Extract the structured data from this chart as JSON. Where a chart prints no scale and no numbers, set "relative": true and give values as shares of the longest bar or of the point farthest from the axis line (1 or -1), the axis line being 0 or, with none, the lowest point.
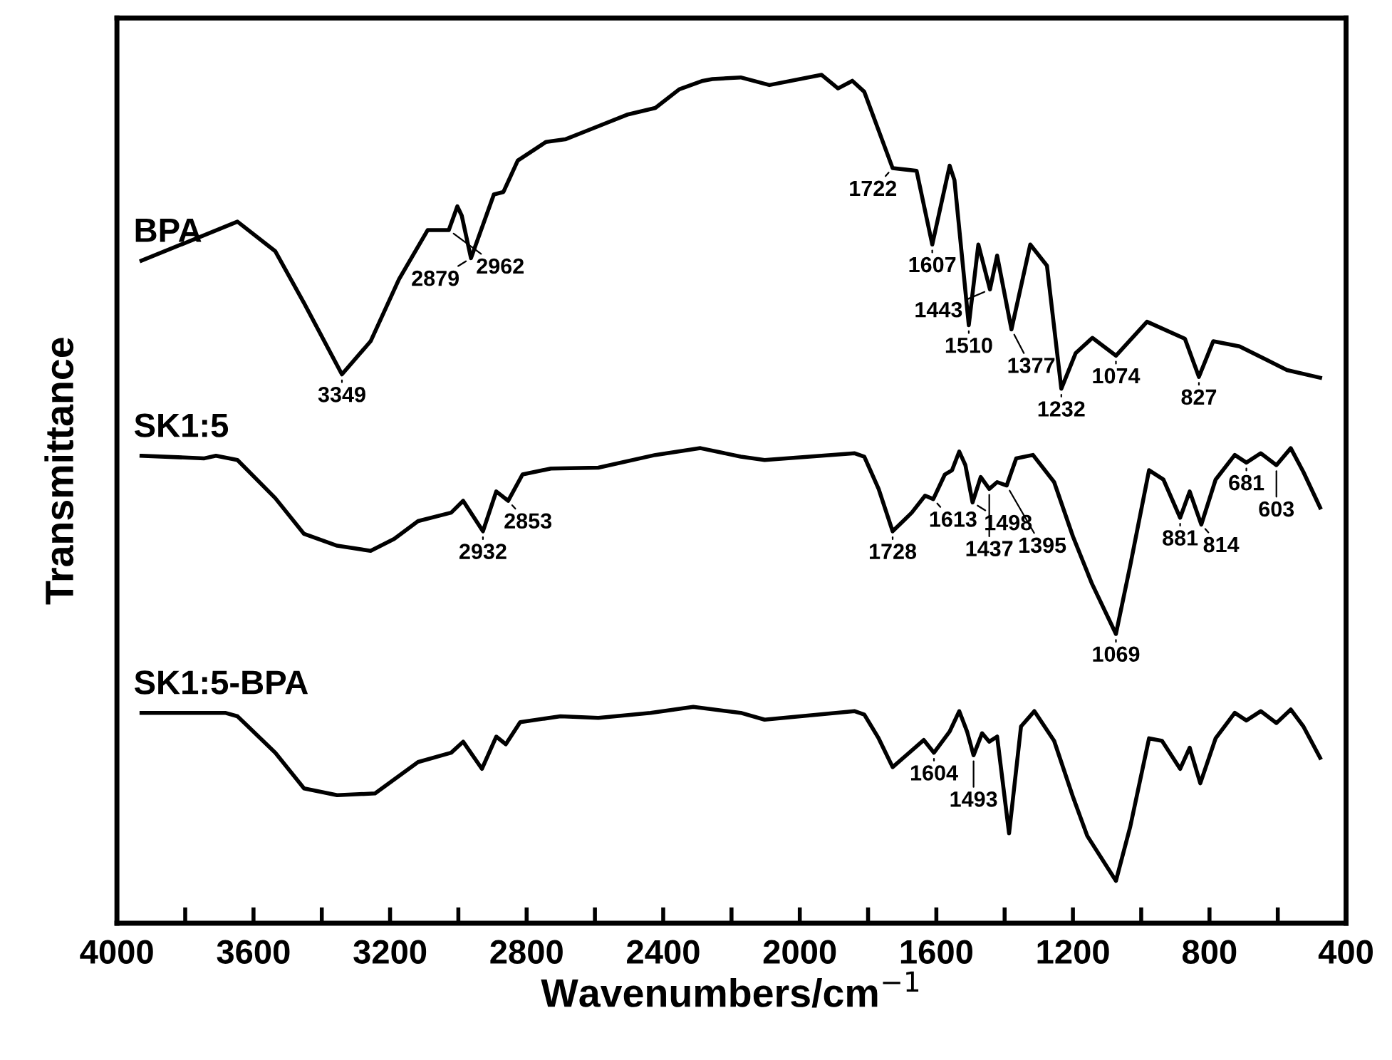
{
  "chart_data": {
    "type": "line",
    "relative": true,
    "xlabel": "Wavenumbers/cm$^{−1}$",
    "ylabel": "Transmittance",
    "xlim": [
      4000,
      400
    ],
    "xticks": [
      4000,
      {
        "value": 3800,
        "label": null
      },
      3600,
      {
        "value": 3400,
        "label": null
      },
      3200,
      {
        "value": 3000,
        "label": null
      },
      2800,
      {
        "value": 2600,
        "label": null
      },
      2400,
      {
        "value": 2200,
        "label": null
      },
      2000,
      {
        "value": 1800,
        "label": null
      },
      1600,
      {
        "value": 1400,
        "label": null
      },
      1200,
      {
        "value": 1000,
        "label": null
      },
      800,
      {
        "value": 600,
        "label": null
      },
      400
    ],
    "grid": false,
    "legend": false,
    "marker": "none",
    "line_style": "solid",
    "series": [
      {
        "name": "BPA",
        "color": "#000000",
        "x": [
          3928,
          3647,
          3536,
          3452,
          3341,
          3257,
          3174,
          3090,
          3028,
          3003,
          2990,
          2963,
          2896,
          2868,
          2826,
          2743,
          2687,
          2618,
          2506,
          2423,
          2353,
          2284,
          2256,
          2173,
          2089,
          1936,
          1888,
          1846,
          1811,
          1728,
          1658,
          1612,
          1561,
          1547,
          1505,
          1477,
          1443,
          1422,
          1380,
          1325,
          1276,
          1234,
          1192,
          1143,
          1074,
          983,
          872,
          831,
          789,
          712,
          573,
          476
        ],
        "values": [
          0.781,
          0.827,
          0.792,
          0.731,
          0.647,
          0.686,
          0.759,
          0.817,
          0.817,
          0.845,
          0.834,
          0.784,
          0.859,
          0.862,
          0.899,
          0.921,
          0.924,
          0.935,
          0.953,
          0.961,
          0.983,
          0.993,
          0.995,
          0.997,
          0.988,
          1.0,
          0.984,
          0.993,
          0.98,
          0.89,
          0.887,
          0.8,
          0.893,
          0.876,
          0.705,
          0.8,
          0.747,
          0.787,
          0.7,
          0.8,
          0.775,
          0.63,
          0.672,
          0.69,
          0.669,
          0.709,
          0.689,
          0.644,
          0.686,
          0.68,
          0.652,
          0.643
        ]
      },
      {
        "name": "SK1:5",
        "color": "#000000",
        "x": [
          3928,
          3744,
          3710,
          3647,
          3536,
          3452,
          3355,
          3257,
          3188,
          3118,
          3021,
          2986,
          2928,
          2889,
          2854,
          2812,
          2729,
          2590,
          2423,
          2291,
          2173,
          2103,
          1839,
          1811,
          1769,
          1728,
          1672,
          1633,
          1609,
          1575,
          1554,
          1533,
          1515,
          1494,
          1470,
          1445,
          1422,
          1394,
          1366,
          1317,
          1255,
          1200,
          1144,
          1074,
          1032,
          977,
          935,
          886,
          858,
          824,
          782,
          726,
          692,
          650,
          604,
          562,
          525,
          476
        ],
        "values": [
          0.551,
          0.548,
          0.551,
          0.546,
          0.501,
          0.459,
          0.445,
          0.439,
          0.453,
          0.474,
          0.484,
          0.498,
          0.462,
          0.509,
          0.498,
          0.529,
          0.536,
          0.537,
          0.552,
          0.56,
          0.55,
          0.546,
          0.554,
          0.55,
          0.512,
          0.462,
          0.484,
          0.504,
          0.5,
          0.529,
          0.534,
          0.556,
          0.54,
          0.496,
          0.526,
          0.512,
          0.52,
          0.516,
          0.548,
          0.552,
          0.52,
          0.456,
          0.4,
          0.341,
          0.422,
          0.534,
          0.523,
          0.478,
          0.509,
          0.47,
          0.523,
          0.552,
          0.543,
          0.554,
          0.54,
          0.56,
          0.532,
          0.49
        ]
      },
      {
        "name": "SK1:5-BPA",
        "color": "#000000",
        "x": [
          3928,
          3683,
          3647,
          3536,
          3452,
          3355,
          3244,
          3118,
          3021,
          2986,
          2931,
          2889,
          2861,
          2819,
          2701,
          2590,
          2437,
          2312,
          2173,
          2103,
          1839,
          1811,
          1769,
          1728,
          1637,
          1607,
          1561,
          1533,
          1510,
          1491,
          1466,
          1445,
          1422,
          1387,
          1352,
          1313,
          1255,
          1199,
          1158,
          1074,
          1032,
          977,
          939,
          886,
          858,
          827,
          782,
          726,
          692,
          650,
          604,
          562,
          525,
          476
        ],
        "values": [
          0.248,
          0.248,
          0.244,
          0.201,
          0.159,
          0.151,
          0.153,
          0.19,
          0.201,
          0.214,
          0.182,
          0.22,
          0.211,
          0.237,
          0.244,
          0.242,
          0.248,
          0.255,
          0.248,
          0.24,
          0.25,
          0.246,
          0.218,
          0.184,
          0.216,
          0.201,
          0.226,
          0.25,
          0.226,
          0.198,
          0.224,
          0.214,
          0.22,
          0.106,
          0.232,
          0.25,
          0.215,
          0.148,
          0.103,
          0.05,
          0.114,
          0.218,
          0.215,
          0.182,
          0.207,
          0.165,
          0.218,
          0.248,
          0.239,
          0.25,
          0.236,
          0.252,
          0.232,
          0.195
        ]
      }
    ],
    "annotations": [
      {
        "text": "3349",
        "x": 3341,
        "y": 0.647
      },
      {
        "text": "2962",
        "x": 3028,
        "y": 0.817
      },
      {
        "text": "2879",
        "x": 2963,
        "y": 0.784
      },
      {
        "text": "1722",
        "x": 1728,
        "y": 0.89
      },
      {
        "text": "1607",
        "x": 1612,
        "y": 0.8
      },
      {
        "text": "1510",
        "x": 1505,
        "y": 0.705
      },
      {
        "text": "1443",
        "x": 1443,
        "y": 0.747
      },
      {
        "text": "1377",
        "x": 1380,
        "y": 0.7
      },
      {
        "text": "1232",
        "x": 1234,
        "y": 0.63
      },
      {
        "text": "1074",
        "x": 1074,
        "y": 0.669
      },
      {
        "text": "827",
        "x": 831,
        "y": 0.644
      },
      {
        "text": "2932",
        "x": 2928,
        "y": 0.462
      },
      {
        "text": "2853",
        "x": 2854,
        "y": 0.498
      },
      {
        "text": "1728",
        "x": 1728,
        "y": 0.462
      },
      {
        "text": "1613",
        "x": 1609,
        "y": 0.5
      },
      {
        "text": "1498",
        "x": 1494,
        "y": 0.496
      },
      {
        "text": "1437",
        "x": 1445,
        "y": 0.512
      },
      {
        "text": "1395",
        "x": 1394,
        "y": 0.516
      },
      {
        "text": "1069",
        "x": 1074,
        "y": 0.341
      },
      {
        "text": "881",
        "x": 886,
        "y": 0.478
      },
      {
        "text": "814",
        "x": 824,
        "y": 0.47
      },
      {
        "text": "681",
        "x": 692,
        "y": 0.543
      },
      {
        "text": "603",
        "x": 604,
        "y": 0.54
      },
      {
        "text": "1604",
        "x": 1607,
        "y": 0.201
      },
      {
        "text": "1493",
        "x": 1491,
        "y": 0.198
      }
    ]
  }
}
